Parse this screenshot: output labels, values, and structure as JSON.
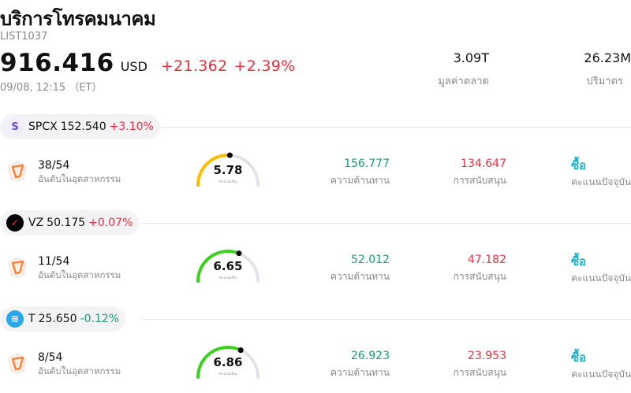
{
  "header": {
    "title": "บริการโทรคมนาคม",
    "code": "LIST1037",
    "price": "916.416",
    "currency": "USD",
    "change": "+21.362",
    "change_pct": "+2.39%",
    "time": "09/08, 12:15 （ET）",
    "market_cap_value": "3.09T",
    "market_cap_label": "มูลค่าตลาด",
    "volume_value": "26.23M",
    "volume_label": "ปริมาตร"
  },
  "stocks": [
    {
      "logo_text": "S",
      "logo_color": "#6c4bd6",
      "ticker": "SPCX",
      "price": "152.540",
      "change": "+3.10%",
      "rank": "38/54",
      "rank_label": "อันดับในอุตสาหกรรม",
      "score": "5.78",
      "score_fraction": 0.52,
      "score_color": "#ffbf00",
      "score_label": "คะแนนหุ้น",
      "resistance": "156.777",
      "resistance_label": "ความต้านทาน",
      "support": "134.647",
      "support_label": "การสนับสนุน",
      "rating": "ซื้อ",
      "rating_label": "คะแนนปัจจุบัน"
    },
    {
      "logo_text": "✓",
      "logo_color": "#e5303f",
      "ticker": "VZ",
      "price": "50.175",
      "change": "+0.07%",
      "rank": "11/54",
      "rank_label": "อันดับในอุตสาหกรรม",
      "score": "6.65",
      "score_fraction": 0.62,
      "score_color": "#3ed01f",
      "score_label": "คะแนนหุ้น",
      "resistance": "52.012",
      "resistance_label": "ความต้านทาน",
      "support": "47.182",
      "support_label": "การสนับสนุน",
      "rating": "ซื้อ",
      "rating_label": "คะแนนปัจจุบัน"
    },
    {
      "logo_text": "≋",
      "logo_color": "#2aa7e8",
      "ticker": "T",
      "price": "25.650",
      "change": "-0.12%",
      "rank": "8/54",
      "rank_label": "อันดับในอุตสาหกรรม",
      "score": "6.86",
      "score_fraction": 0.64,
      "score_color": "#3ed01f",
      "score_label": "คะแนนหุ้น",
      "resistance": "26.923",
      "resistance_label": "ความต้านทาน",
      "support": "23.953",
      "support_label": "การสนับสนุน",
      "rating": "ซื้อ",
      "rating_label": "คะแนนปัจจุบัน"
    }
  ]
}
